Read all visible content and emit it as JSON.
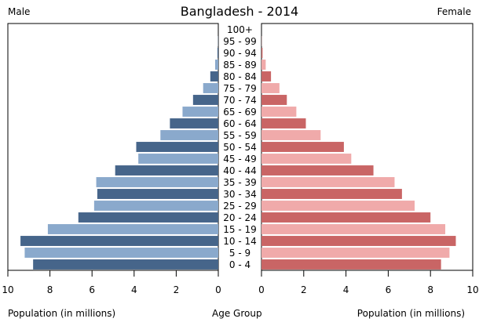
{
  "chart_data": {
    "type": "bar",
    "title": "Bangladesh - 2014",
    "left_label": "Male",
    "right_label": "Female",
    "xlabel_left": "Population (in millions)",
    "xlabel_center": "Age Group",
    "xlabel_right": "Population (in millions)",
    "xlim": [
      0,
      10
    ],
    "xticks": [
      "0",
      "2",
      "4",
      "6",
      "8",
      "10"
    ],
    "categories": [
      "100+",
      "95 - 99",
      "90 - 94",
      "85 - 89",
      "80 - 84",
      "75 - 79",
      "70 - 74",
      "65 - 69",
      "60 - 64",
      "55 - 59",
      "50 - 54",
      "45 - 49",
      "40 - 44",
      "35 - 39",
      "30 - 34",
      "25 - 29",
      "20 - 24",
      "15 - 19",
      "10 - 14",
      "5 - 9",
      "0 - 4"
    ],
    "series": [
      {
        "name": "Male",
        "values": [
          0.0,
          0.01,
          0.04,
          0.15,
          0.38,
          0.72,
          1.2,
          1.7,
          2.3,
          2.75,
          3.9,
          3.8,
          4.9,
          5.8,
          5.75,
          5.9,
          6.65,
          8.1,
          9.4,
          9.2,
          8.8
        ]
      },
      {
        "name": "Female",
        "values": [
          0.0,
          0.01,
          0.05,
          0.2,
          0.45,
          0.85,
          1.2,
          1.65,
          2.1,
          2.8,
          3.9,
          4.25,
          5.3,
          6.3,
          6.65,
          7.25,
          8.0,
          8.7,
          9.2,
          8.9,
          8.5
        ]
      }
    ],
    "colors": {
      "male_dark": "#46658a",
      "male_light": "#8aa9cc",
      "female_dark": "#c96565",
      "female_light": "#f0aaaa"
    },
    "grid": false,
    "legend": "none"
  }
}
